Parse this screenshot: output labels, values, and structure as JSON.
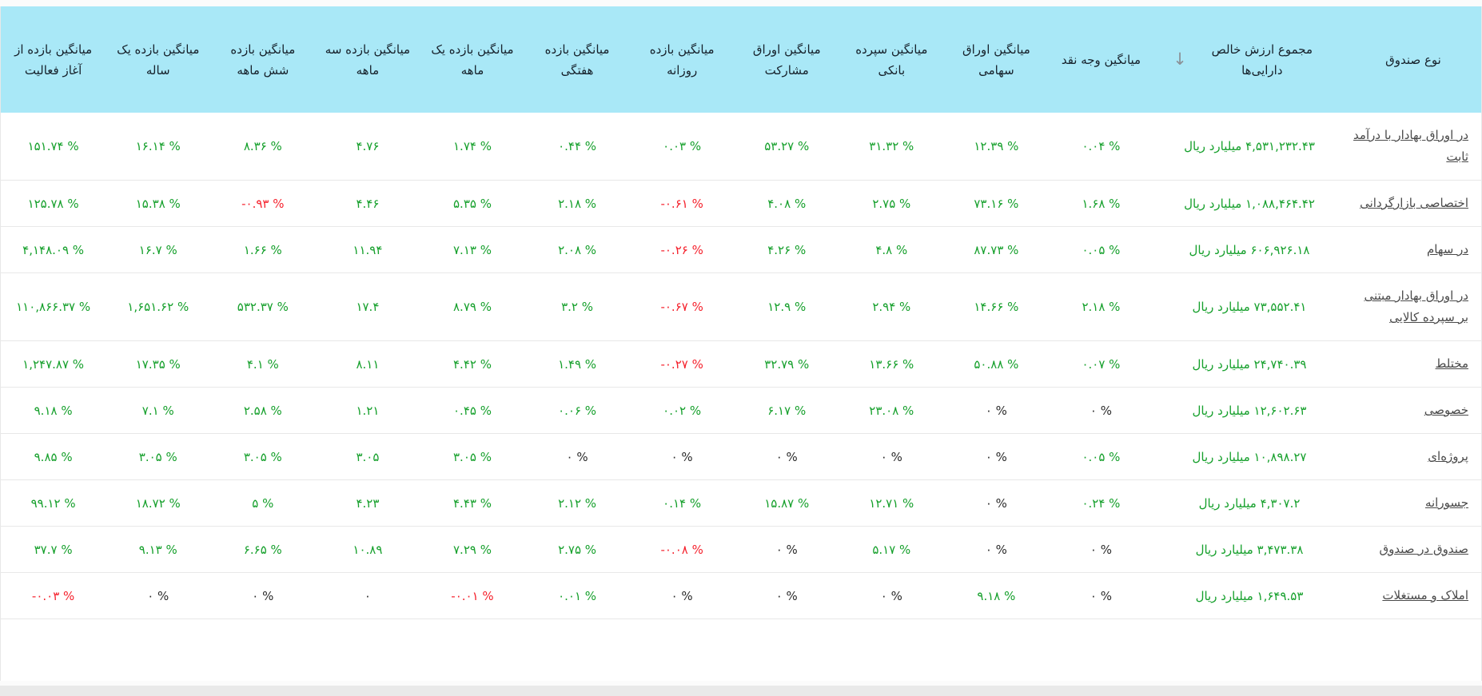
{
  "table": {
    "sort_icon": "↓",
    "columns": [
      {
        "id": "type",
        "label": "نوع صندوق"
      },
      {
        "id": "nav",
        "label": "مجموع ارزش خالص دارایی‌ها"
      },
      {
        "id": "cash",
        "label": "میانگین وجه نقد"
      },
      {
        "id": "equity",
        "label": "میانگین اوراق سهامی"
      },
      {
        "id": "bank",
        "label": "میانگین سپرده بانکی"
      },
      {
        "id": "participation",
        "label": "میانگین اوراق مشارکت"
      },
      {
        "id": "daily",
        "label": "میانگین بازده روزانه"
      },
      {
        "id": "weekly",
        "label": "میانگین بازده هفتگی"
      },
      {
        "id": "m1",
        "label": "میانگین بازده یک ماهه"
      },
      {
        "id": "m3",
        "label": "میانگین بازده سه ماهه"
      },
      {
        "id": "m6",
        "label": "میانگین بازده شش ماهه"
      },
      {
        "id": "y1",
        "label": "میانگین بازده یک ساله"
      },
      {
        "id": "inception",
        "label": "میانگین بازده از آغاز فعالیت"
      }
    ],
    "rows": [
      {
        "type": "در اوراق بهادار با درآمد ثابت",
        "nav": "۴,۵۳۱,۲۳۲.۴۳ میلیارد ریال",
        "cash": "۰.۰۴ %",
        "equity": "۱۲.۳۹ %",
        "bank": "۳۱.۳۲ %",
        "participation": "۵۳.۲۷ %",
        "daily": "۰.۰۳ %",
        "weekly": "۰.۴۴ %",
        "m1": "۱.۷۴ %",
        "m3": "۴.۷۶",
        "m6": "۸.۳۶ %",
        "y1": "۱۶.۱۴ %",
        "inception": "۱۵۱.۷۴ %"
      },
      {
        "type": "اختصاصی بازارگردانی",
        "nav": "۱,۰۸۸,۴۶۴.۴۲ میلیارد ریال",
        "cash": "۱.۶۸ %",
        "equity": "۷۳.۱۶ %",
        "bank": "۲.۷۵ %",
        "participation": "۴.۰۸ %",
        "daily": "-۰.۶۱ %",
        "weekly": "۲.۱۸ %",
        "m1": "۵.۳۵ %",
        "m3": "۴.۴۶",
        "m6": "-۰.۹۳ %",
        "y1": "۱۵.۳۸ %",
        "inception": "۱۲۵.۷۸ %"
      },
      {
        "type": "در سهام",
        "nav": "۶۰۶,۹۲۶.۱۸ میلیارد ریال",
        "cash": "۰.۰۵ %",
        "equity": "۸۷.۷۳ %",
        "bank": "۴.۸ %",
        "participation": "۴.۲۶ %",
        "daily": "-۰.۲۶ %",
        "weekly": "۲.۰۸ %",
        "m1": "۷.۱۳ %",
        "m3": "۱۱.۹۴",
        "m6": "۱.۶۶ %",
        "y1": "۱۶.۷ %",
        "inception": "۴,۱۴۸.۰۹ %"
      },
      {
        "type": "در اوراق بهادار مبتنی بر سپرده کالایی",
        "nav": "۷۳,۵۵۲.۴۱ میلیارد ریال",
        "cash": "۲.۱۸ %",
        "equity": "۱۴.۶۶ %",
        "bank": "۲.۹۴ %",
        "participation": "۱۲.۹ %",
        "daily": "-۰.۶۷ %",
        "weekly": "۳.۲ %",
        "m1": "۸.۷۹ %",
        "m3": "۱۷.۴",
        "m6": "۵۳۲.۳۷ %",
        "y1": "۱,۶۵۱.۶۲ %",
        "inception": "۱۱۰,۸۶۶.۳۷ %"
      },
      {
        "type": "مختلط",
        "nav": "۲۴,۷۴۰.۳۹ میلیارد ریال",
        "cash": "۰.۰۷ %",
        "equity": "۵۰.۸۸ %",
        "bank": "۱۳.۶۶ %",
        "participation": "۳۲.۷۹ %",
        "daily": "-۰.۲۷ %",
        "weekly": "۱.۴۹ %",
        "m1": "۴.۴۲ %",
        "m3": "۸.۱۱",
        "m6": "۴.۱ %",
        "y1": "۱۷.۳۵ %",
        "inception": "۱,۲۴۷.۸۷ %"
      },
      {
        "type": "خصوصی",
        "nav": "۱۲,۶۰۲.۶۳ میلیارد ریال",
        "cash": "۰ %",
        "equity": "۰ %",
        "bank": "۲۳.۰۸ %",
        "participation": "۶.۱۷ %",
        "daily": "۰.۰۲ %",
        "weekly": "۰.۰۶ %",
        "m1": "۰.۴۵ %",
        "m3": "۱.۲۱",
        "m6": "۲.۵۸ %",
        "y1": "۷.۱ %",
        "inception": "۹.۱۸ %"
      },
      {
        "type": "پروژه‌ای",
        "nav": "۱۰,۸۹۸.۲۷ میلیارد ریال",
        "cash": "۰.۰۵ %",
        "equity": "۰ %",
        "bank": "۰ %",
        "participation": "۰ %",
        "daily": "۰ %",
        "weekly": "۰ %",
        "m1": "۳.۰۵ %",
        "m3": "۳.۰۵",
        "m6": "۳.۰۵ %",
        "y1": "۳.۰۵ %",
        "inception": "۹.۸۵ %"
      },
      {
        "type": "جسورانه",
        "nav": "۴,۳۰۷.۲ میلیارد ریال",
        "cash": "۰.۲۴ %",
        "equity": "۰ %",
        "bank": "۱۲.۷۱ %",
        "participation": "۱۵.۸۷ %",
        "daily": "۰.۱۴ %",
        "weekly": "۲.۱۲ %",
        "m1": "۴.۴۳ %",
        "m3": "۴.۲۳",
        "m6": "۵ %",
        "y1": "۱۸.۷۲ %",
        "inception": "۹۹.۱۲ %"
      },
      {
        "type": "صندوق در صندوق",
        "nav": "۳,۴۷۳.۳۸ میلیارد ریال",
        "cash": "۰ %",
        "equity": "۰ %",
        "bank": "۵.۱۷ %",
        "participation": "۰ %",
        "daily": "-۰.۰۸ %",
        "weekly": "۲.۷۵ %",
        "m1": "۷.۲۹ %",
        "m3": "۱۰.۸۹",
        "m6": "۶.۶۵ %",
        "y1": "۹.۱۳ %",
        "inception": "۳۷.۷ %"
      },
      {
        "type": "املاک و مستغلات",
        "nav": "۱,۶۴۹.۵۳ میلیارد ریال",
        "cash": "۰ %",
        "equity": "۹.۱۸ %",
        "bank": "۰ %",
        "participation": "۰ %",
        "daily": "۰ %",
        "weekly": "۰.۰۱ %",
        "m1": "-۰.۰۱ %",
        "m3": "۰",
        "m6": "۰ %",
        "y1": "۰ %",
        "inception": "-۰.۰۳ %"
      }
    ]
  },
  "colors": {
    "positive": "#16a02c",
    "negative": "#f5222d",
    "zero": "#2b2b2b",
    "header_bg": "#a9e8f7",
    "header_text": "#16212b",
    "fund_link": "#4a4a4a",
    "sort_arrow": "#8b9197",
    "row_border": "#e8e8e8"
  }
}
